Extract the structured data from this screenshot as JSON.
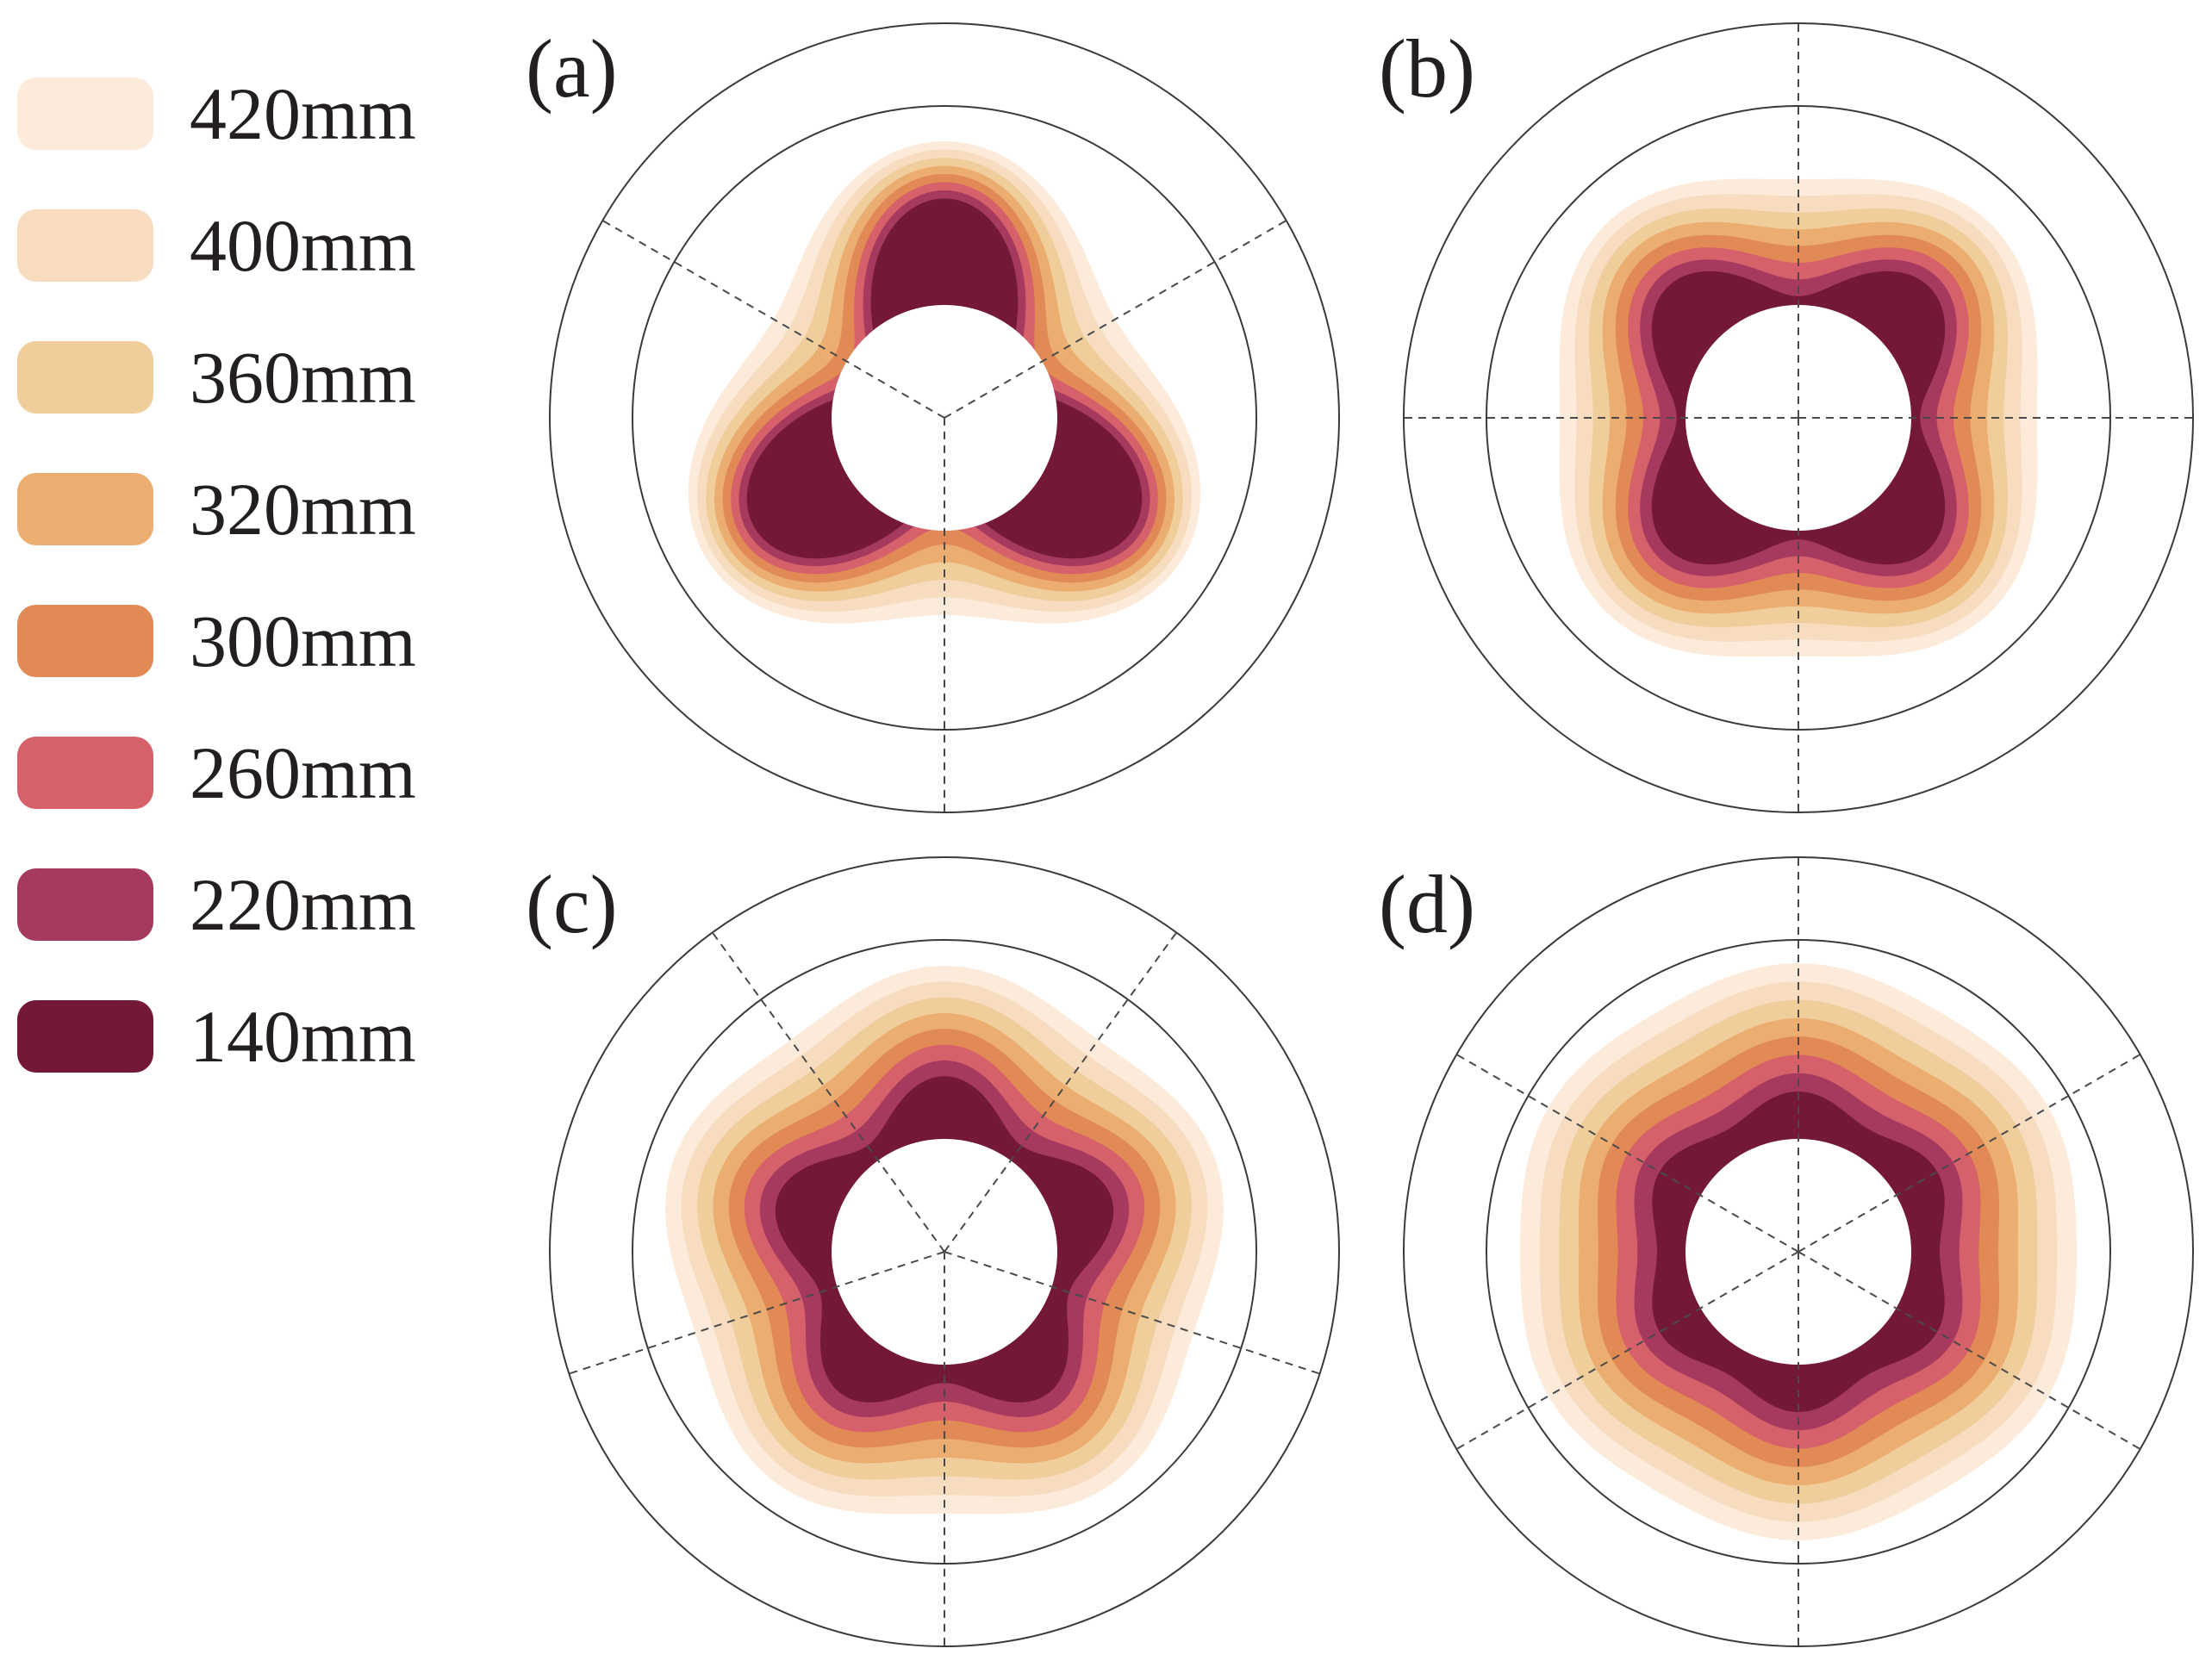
{
  "legend": {
    "items": [
      {
        "label": "420mm",
        "color": "#FCEBDB"
      },
      {
        "label": "400mm",
        "color": "#F7DCC0"
      },
      {
        "label": "360mm",
        "color": "#F0CE9C"
      },
      {
        "label": "320mm",
        "color": "#EBAE70"
      },
      {
        "label": "300mm",
        "color": "#E28A55"
      },
      {
        "label": "260mm",
        "color": "#D7616A"
      },
      {
        "label": "220mm",
        "color": "#A63A5E"
      },
      {
        "label": "140mm",
        "color": "#731937"
      }
    ]
  },
  "panels": [
    {
      "label": "(a)",
      "lobes": 3,
      "spokes": 3
    },
    {
      "label": "(b)",
      "lobes": 4,
      "spokes": 4
    },
    {
      "label": "(c)",
      "lobes": 5,
      "spokes": 5
    },
    {
      "label": "(d)",
      "lobes": 6,
      "spokes": 6
    }
  ]
}
